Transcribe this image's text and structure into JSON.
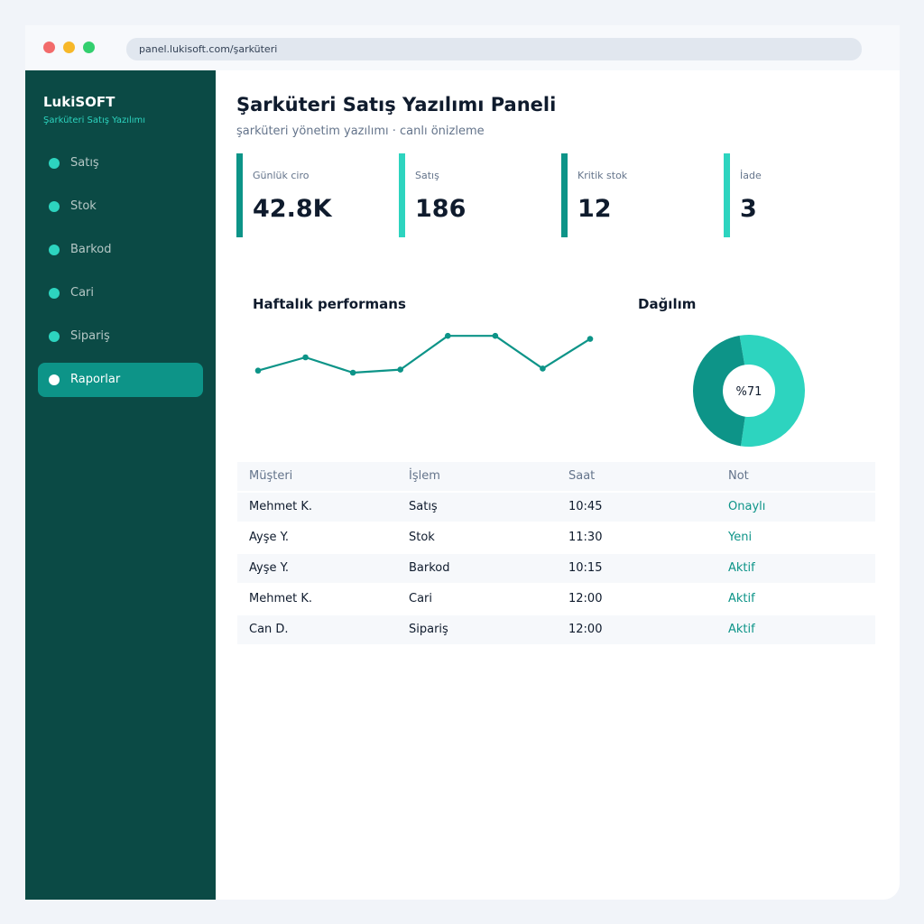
{
  "browser": {
    "url": "panel.lukisoft.com/şarküteri"
  },
  "sidebar": {
    "brand": "LukiSOFT",
    "brand_sub": "Şarküteri Satış Yazılımı",
    "items": [
      {
        "label": "Satış",
        "active": false
      },
      {
        "label": "Stok",
        "active": false
      },
      {
        "label": "Barkod",
        "active": false
      },
      {
        "label": "Cari",
        "active": false
      },
      {
        "label": "Sipariş",
        "active": false
      },
      {
        "label": "Raporlar",
        "active": true
      }
    ]
  },
  "header": {
    "title": "Şarküteri Satış Yazılımı Paneli",
    "subtitle": "şarküteri yönetim yazılımı · canlı önizleme"
  },
  "kpis": [
    {
      "label": "Günlük ciro",
      "value": "42.8K",
      "color": "#0d9488"
    },
    {
      "label": "Satış",
      "value": "186",
      "color": "#2dd4bf"
    },
    {
      "label": "Kritik stok",
      "value": "12",
      "color": "#0d9488"
    },
    {
      "label": "İade",
      "value": "3",
      "color": "#2dd4bf"
    }
  ],
  "line_chart": {
    "title": "Haftalık performans"
  },
  "donut_chart": {
    "title": "Dağılım",
    "center_label": "%71"
  },
  "chart_data": [
    {
      "type": "line",
      "title": "Haftalık performans",
      "x": [
        1,
        2,
        3,
        4,
        5,
        6,
        7,
        8
      ],
      "series": [
        {
          "values": [
            37,
            50,
            35,
            38,
            71,
            71,
            39,
            68
          ]
        }
      ],
      "ylim": [
        0,
        100
      ],
      "grid": false,
      "color": "#0d9488"
    },
    {
      "type": "pie",
      "title": "Dağılım",
      "values": [
        55,
        45
      ],
      "colors": [
        "#2dd4bf",
        "#0d9488"
      ],
      "center_label": "%71"
    }
  ],
  "table": {
    "headers": [
      "Müşteri",
      "İşlem",
      "Saat",
      "Not"
    ],
    "rows": [
      [
        "Mehmet K.",
        "Satış",
        "10:45",
        "Onaylı"
      ],
      [
        "Ayşe Y.",
        "Stok",
        "11:30",
        "Yeni"
      ],
      [
        "Ayşe Y.",
        "Barkod",
        "10:15",
        "Aktif"
      ],
      [
        "Mehmet K.",
        "Cari",
        "12:00",
        "Aktif"
      ],
      [
        "Can D.",
        "Sipariş",
        "12:00",
        "Aktif"
      ]
    ]
  }
}
